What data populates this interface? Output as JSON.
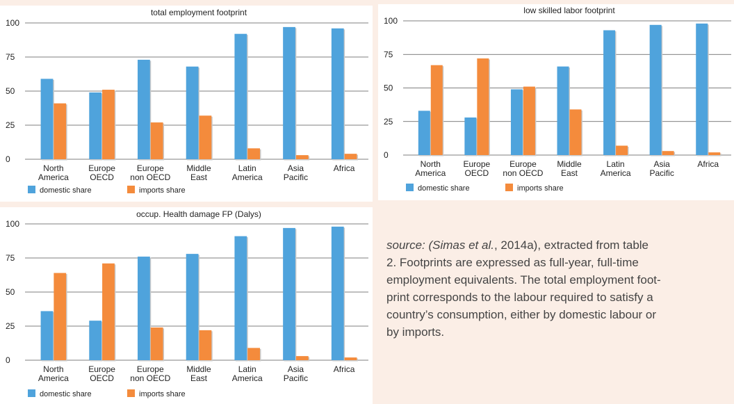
{
  "chart_data": [
    {
      "type": "bar",
      "title": "total employment footprint",
      "categories": [
        [
          "North",
          "America"
        ],
        [
          "Europe",
          "OECD"
        ],
        [
          "Europe",
          "non OECD"
        ],
        [
          "Middle",
          "East"
        ],
        [
          "Latin",
          "America"
        ],
        [
          "Asia",
          "Pacific"
        ],
        [
          "Africa"
        ]
      ],
      "series": [
        {
          "name": "domestic share",
          "values": [
            59,
            49,
            73,
            68,
            92,
            97,
            96
          ]
        },
        {
          "name": "imports share",
          "values": [
            41,
            51,
            27,
            32,
            8,
            3,
            4
          ]
        }
      ],
      "ylim": [
        0,
        100
      ],
      "yticks": [
        "0",
        "25",
        "50",
        "75",
        "100"
      ],
      "grid": true,
      "legend_position": "bottom-left"
    },
    {
      "type": "bar",
      "title": "low skilled labor footprint",
      "categories": [
        [
          "North",
          "America"
        ],
        [
          "Europe",
          "OECD"
        ],
        [
          "Europe",
          "non OECD"
        ],
        [
          "Middle",
          "East"
        ],
        [
          "Latin",
          "America"
        ],
        [
          "Asia",
          "Pacific"
        ],
        [
          "Africa"
        ]
      ],
      "series": [
        {
          "name": "domestic share",
          "values": [
            33,
            28,
            49,
            66,
            93,
            97,
            98
          ]
        },
        {
          "name": "imports share",
          "values": [
            67,
            72,
            51,
            34,
            7,
            3,
            2
          ]
        }
      ],
      "ylim": [
        0,
        100
      ],
      "yticks": [
        "0",
        "25",
        "50",
        "75",
        "100"
      ],
      "grid": true,
      "legend_position": "bottom-left"
    },
    {
      "type": "bar",
      "title": "occup. Health damage FP (Dalys)",
      "categories": [
        [
          "North",
          "America"
        ],
        [
          "Europe",
          "OECD"
        ],
        [
          "Europe",
          "non OECD"
        ],
        [
          "Middle",
          "East"
        ],
        [
          "Latin",
          "America"
        ],
        [
          "Asia",
          "Pacific"
        ],
        [
          "Africa"
        ]
      ],
      "series": [
        {
          "name": "domestic share",
          "values": [
            36,
            29,
            76,
            78,
            91,
            97,
            98
          ]
        },
        {
          "name": "imports share",
          "values": [
            64,
            71,
            24,
            22,
            9,
            3,
            2
          ]
        }
      ],
      "ylim": [
        0,
        100
      ],
      "yticks": [
        "0",
        "25",
        "50",
        "75",
        "100"
      ],
      "grid": true,
      "legend_position": "bottom-left"
    }
  ],
  "colors": {
    "domestic": "#4fa3dc",
    "imports": "#f48b3c",
    "grid": "#555555",
    "text": "#222222"
  },
  "caption": {
    "source_label": "source: (Simas ",
    "et_al": "et al.",
    "source_rest": ", 2014a), extracted from table",
    "line2": "2. Footprints are expressed as full-year, full-time",
    "line3": "employment equivalents. The total employment foot-",
    "line4": "print corresponds to the labour required to satisfy a",
    "line5": "country’s consumption, either by domestic labour or",
    "line6": "by imports."
  }
}
